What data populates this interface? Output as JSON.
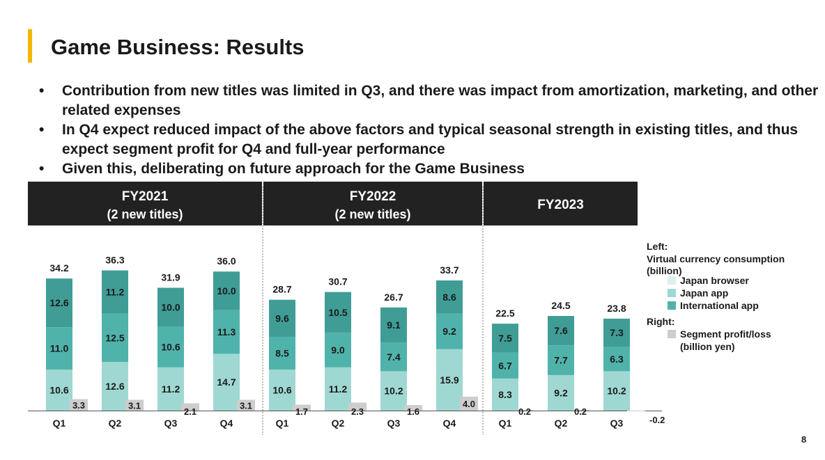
{
  "title": "Game Business: Results",
  "bullets": [
    "Contribution from new titles was limited in Q3, and there was impact from amortization, marketing, and other related expenses",
    "In Q4 expect reduced impact of the above factors and typical seasonal strength in existing titles, and thus expect segment profit for Q4 and full-year performance",
    "Given this, deliberating on future approach for the Game Business"
  ],
  "page_number": "8",
  "colors": {
    "japan_browser": "#dcefee",
    "japan_app": "#9fd8d2",
    "international_app": "#50b3ab",
    "international_app_dark": "#3f9d96",
    "segment": "#cdcdcd",
    "header_bg": "#222222",
    "title_accent": "#f2b600"
  },
  "chart_data": {
    "type": "bar",
    "groups": [
      {
        "label": "FY2021",
        "sublabel": "(2 new titles)",
        "quarters": [
          "Q1",
          "Q2",
          "Q3",
          "Q4"
        ]
      },
      {
        "label": "FY2022",
        "sublabel": "(2 new titles)",
        "quarters": [
          "Q1",
          "Q2",
          "Q3",
          "Q4"
        ]
      },
      {
        "label": "FY2023",
        "sublabel": "",
        "quarters": [
          "Q1",
          "Q2",
          "Q3"
        ]
      }
    ],
    "left_axis_label": "Left:",
    "left_axis_title": "Virtual currency consumption (billion)",
    "right_axis_label": "Right:",
    "right_axis_title": "Segment profit/loss (billion yen)",
    "series": [
      {
        "name": "Japan browser",
        "values": [
          0,
          0,
          0,
          0,
          0,
          0,
          0,
          0,
          0,
          0,
          0
        ]
      },
      {
        "name": "Japan app",
        "values": [
          10.6,
          12.6,
          11.2,
          14.7,
          10.6,
          11.2,
          10.2,
          15.9,
          8.3,
          9.2,
          10.2
        ]
      },
      {
        "name": "International app",
        "values": [
          11.0,
          12.5,
          10.6,
          11.3,
          8.5,
          9.0,
          7.4,
          9.2,
          6.7,
          7.7,
          6.3
        ]
      },
      {
        "name": "International app (top)",
        "values": [
          12.6,
          11.2,
          10.0,
          10.0,
          9.6,
          10.5,
          9.1,
          8.6,
          7.5,
          7.6,
          7.3
        ]
      }
    ],
    "totals": [
      34.2,
      36.3,
      31.9,
      36.0,
      28.7,
      30.7,
      26.7,
      33.7,
      22.5,
      24.5,
      23.8
    ],
    "segment_profit": [
      3.3,
      3.1,
      2.1,
      3.1,
      1.7,
      2.3,
      1.6,
      4.0,
      0.2,
      0.2,
      -0.2
    ],
    "value_labels": {
      "totals": [
        "34.2",
        "36.3",
        "31.9",
        "36.0",
        "28.7",
        "30.7",
        "26.7",
        "33.7",
        "22.5",
        "24.5",
        "23.8"
      ],
      "japan_app": [
        "10.6",
        "12.6",
        "11.2",
        "14.7",
        "10.6",
        "11.2",
        "10.2",
        "15.9",
        "8.3",
        "9.2",
        "10.2"
      ],
      "international_app_mid": [
        "11.0",
        "12.5",
        "10.6",
        "11.3",
        "8.5",
        "9.0",
        "7.4",
        "9.2",
        "6.7",
        "7.7",
        "6.3"
      ],
      "international_app_top": [
        "12.6",
        "11.2",
        "10.0",
        "10.0",
        "9.6",
        "10.5",
        "9.1",
        "8.6",
        "7.5",
        "7.6",
        "7.3"
      ],
      "segment": [
        "3.3",
        "3.1",
        "2.1",
        "3.1",
        "1.7",
        "2.3",
        "1.6",
        "4.0",
        "0.2",
        "0.2",
        "-0.2"
      ]
    }
  }
}
